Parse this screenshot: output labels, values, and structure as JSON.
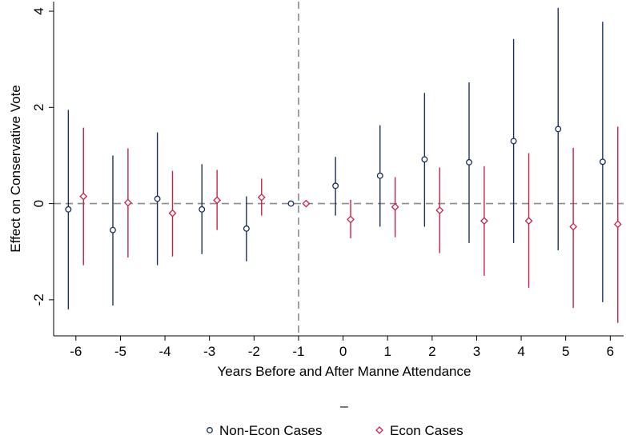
{
  "chart_data": {
    "type": "scatter",
    "xlabel": "Years Before and After Manne Attendance",
    "ylabel": "Effect on Conservative Vote",
    "caption": "_",
    "x_ticks": [
      -6,
      -5,
      -4,
      -3,
      -2,
      -1,
      0,
      1,
      2,
      3,
      4,
      5,
      6
    ],
    "y_ticks": [
      -2,
      0,
      2,
      4
    ],
    "xlim": [
      -6.5,
      6.3
    ],
    "ylim": [
      -2.75,
      4.2
    ],
    "reference_lines": {
      "x": -1,
      "y": 0
    },
    "grid": false,
    "legend_position": "bottom",
    "series": [
      {
        "name": "Non-Econ Cases",
        "color": "#1a2f5a",
        "marker": "circle",
        "x": [
          -6,
          -5,
          -4,
          -3,
          -2,
          -1,
          0,
          1,
          2,
          3,
          4,
          5,
          6
        ],
        "values": [
          -0.12,
          -0.55,
          0.1,
          -0.12,
          -0.52,
          0.0,
          0.37,
          0.58,
          0.92,
          0.86,
          1.3,
          1.55,
          0.87
        ],
        "lower": [
          -2.2,
          -2.12,
          -1.28,
          -1.05,
          -1.2,
          0.0,
          -0.25,
          -0.48,
          -0.48,
          -0.82,
          -0.82,
          -0.97,
          -2.05
        ],
        "upper": [
          1.95,
          1.0,
          1.48,
          0.82,
          0.15,
          0.0,
          0.97,
          1.63,
          2.3,
          2.52,
          3.42,
          4.07,
          3.78
        ]
      },
      {
        "name": "Econ Cases",
        "color": "#c8224a",
        "marker": "diamond",
        "x": [
          -6,
          -5,
          -4,
          -3,
          -2,
          -1,
          0,
          1,
          2,
          3,
          4,
          5,
          6
        ],
        "values": [
          0.15,
          0.02,
          -0.2,
          0.07,
          0.13,
          0.0,
          -0.33,
          -0.07,
          -0.14,
          -0.36,
          -0.36,
          -0.48,
          -0.43
        ],
        "lower": [
          -1.28,
          -1.12,
          -1.1,
          -0.55,
          -0.25,
          0.0,
          -0.72,
          -0.7,
          -1.03,
          -1.5,
          -1.75,
          -2.17,
          -2.48
        ],
        "upper": [
          1.58,
          1.15,
          0.68,
          0.7,
          0.52,
          0.0,
          0.08,
          0.55,
          0.75,
          0.78,
          1.05,
          1.16,
          1.6
        ]
      }
    ]
  }
}
